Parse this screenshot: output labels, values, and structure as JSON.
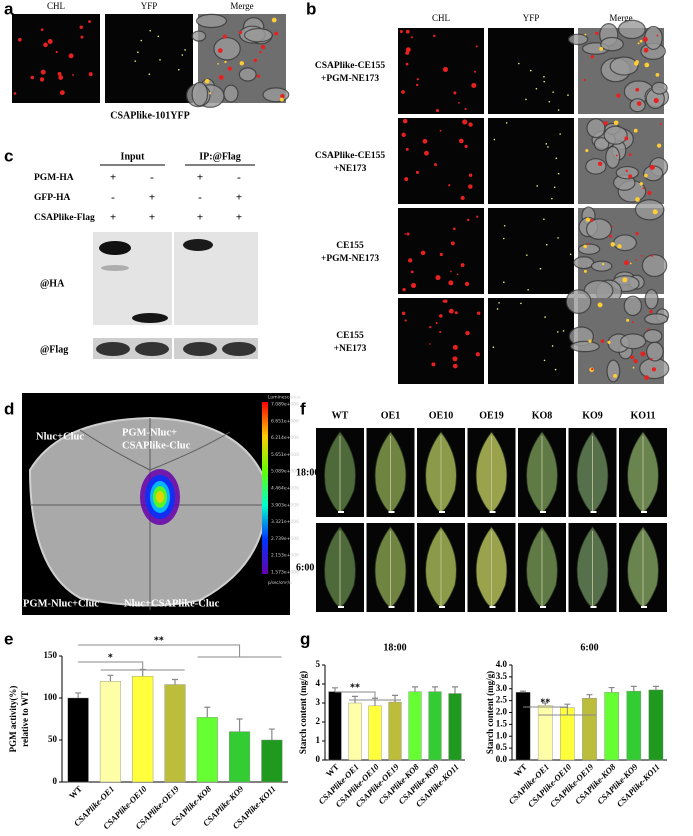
{
  "panel_a": {
    "label": "a",
    "headers": [
      "CHL",
      "YFP",
      "Merge"
    ],
    "caption": "CSAPlike-101YFP"
  },
  "panel_b": {
    "label": "b",
    "headers": [
      "CHL",
      "YFP",
      "Merge"
    ],
    "rows": [
      [
        "CSAPlike-CE155",
        "+PGM-NE173"
      ],
      [
        "CSAPlike-CE155",
        "+NE173"
      ],
      [
        "CE155",
        "+PGM-NE173"
      ],
      [
        "CE155",
        "+NE173"
      ]
    ]
  },
  "panel_c": {
    "label": "c",
    "groups": [
      "Input",
      "IP:@Flag"
    ],
    "rows": [
      {
        "name": "PGM-HA",
        "signs": [
          "+",
          "-",
          "+",
          "-"
        ]
      },
      {
        "name": "GFP-HA",
        "signs": [
          "-",
          "+",
          "-",
          "+"
        ]
      },
      {
        "name": "CSAPlike-Flag",
        "signs": [
          "+",
          "+",
          "+",
          "+"
        ]
      }
    ],
    "blots": [
      "@HA",
      "@Flag"
    ]
  },
  "panel_d": {
    "label": "d",
    "top_left": "Nluc+Cluc",
    "top_right": [
      "PGM-Nluc+",
      "CSAPlike-Cluc"
    ],
    "bottom_left": "PGM-Nluc+Cluc",
    "bottom_right": "Nluc+CSAPlike-Cluc",
    "colorbar_title": "Luminescence",
    "colorbar_labels": [
      "7.089e+006",
      "6.651e+006",
      "6.214e+006",
      "5.651e+006",
      "5.089e+006",
      "4.464e+006",
      "3.903e+006",
      "3.321e+006",
      "2.739e+006",
      "2.153e+006",
      "1.573e+006"
    ],
    "colorbar_unit": "p/sec/cm²/sr"
  },
  "panel_f": {
    "label": "f",
    "lines": [
      "WT",
      "OE1",
      "OE10",
      "OE19",
      "KO8",
      "KO9",
      "KO11"
    ],
    "times": [
      "18:00",
      "6:00"
    ]
  },
  "panel_e": {
    "label": "e"
  },
  "panel_g": {
    "label": "g"
  },
  "chart_data": [
    {
      "type": "bar",
      "ylabel": [
        "PGM activity(%)",
        "relative to WT"
      ],
      "categories": [
        "WT",
        "CSAPlike-OE1",
        "CSAPlike-OE10",
        "CSAPlike-OE19",
        "CSAPlike-KO8",
        "CSAPlike-KO9",
        "CSAPlike-KO11"
      ],
      "values": [
        100,
        120,
        126,
        116,
        77,
        60,
        50
      ],
      "errors": [
        6,
        7,
        8,
        6,
        12,
        15,
        13
      ],
      "colors": [
        "#000000",
        "#ffffa8",
        "#ffff3c",
        "#bdbd3c",
        "#66ff33",
        "#33cc33",
        "#1f9a1f"
      ],
      "ylim": [
        0,
        150
      ],
      "yticks": [
        0,
        50,
        100,
        150
      ],
      "annotations": [
        "*",
        "**"
      ]
    },
    {
      "type": "bar",
      "title": "18:00",
      "ylabel": [
        "Starch content (mg/g)"
      ],
      "categories": [
        "WT",
        "CSAPlike-OE1",
        "CSAPlike-OE10",
        "CSAPlike-OE19",
        "CSAPlike-KO8",
        "CSAPlike-KO9",
        "CSAPlike-KO11"
      ],
      "values": [
        3.6,
        3.0,
        2.85,
        3.05,
        3.6,
        3.6,
        3.5
      ],
      "errors": [
        0.2,
        0.35,
        0.4,
        0.35,
        0.25,
        0.25,
        0.35
      ],
      "colors": [
        "#000000",
        "#ffffa8",
        "#ffff3c",
        "#bdbd3c",
        "#66ff33",
        "#33cc33",
        "#1f9a1f"
      ],
      "ylim": [
        0,
        5
      ],
      "yticks": [
        0,
        1,
        2,
        3,
        4,
        5
      ],
      "annotations": [
        "**"
      ]
    },
    {
      "type": "bar",
      "title": "6:00",
      "ylabel": [
        "Starch content (mg/g)"
      ],
      "categories": [
        "WT",
        "CSAPlike-OE1",
        "CSAPlike-OE10",
        "CSAPlike-OE19",
        "CSAPlike-KO8",
        "CSAPlike-KO9",
        "CSAPlike-KO11"
      ],
      "values": [
        2.85,
        2.3,
        2.2,
        2.6,
        2.85,
        2.9,
        2.95
      ],
      "errors": [
        0.05,
        0.1,
        0.15,
        0.15,
        0.2,
        0.2,
        0.15
      ],
      "colors": [
        "#000000",
        "#ffffa8",
        "#ffff3c",
        "#bdbd3c",
        "#66ff33",
        "#33cc33",
        "#1f9a1f"
      ],
      "ylim": [
        0,
        4
      ],
      "yticks": [
        {
          "value": 0,
          "label": "0.0"
        },
        0.5,
        {
          "value": 1,
          "label": "1.0"
        },
        1.5,
        {
          "value": 2,
          "label": "2.0"
        },
        2.5,
        {
          "value": 3,
          "label": "3.0"
        },
        3.5,
        {
          "value": 4,
          "label": "4.0"
        }
      ],
      "annotations": [
        "**"
      ]
    }
  ]
}
